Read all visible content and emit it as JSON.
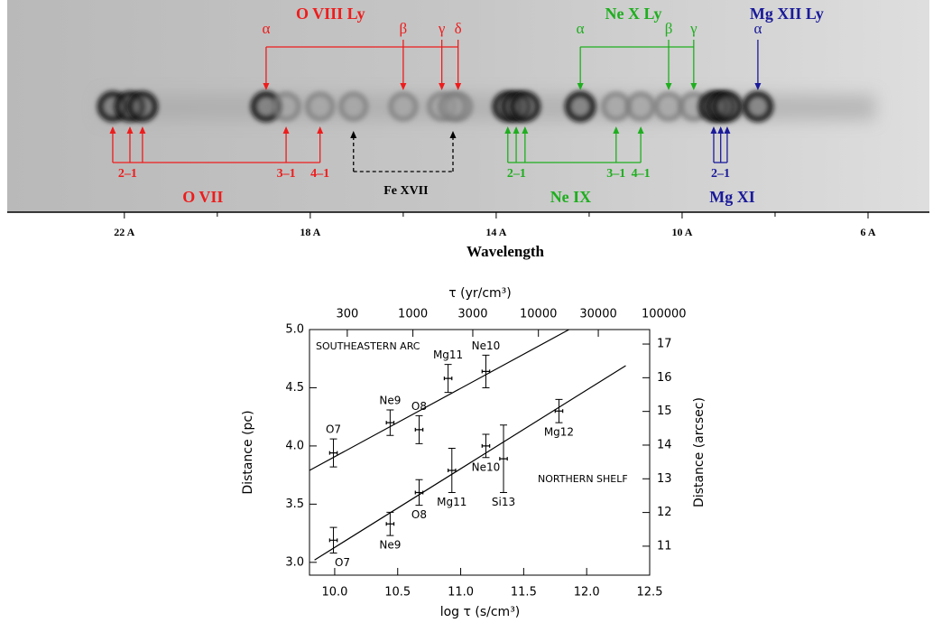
{
  "chart_data": [
    {
      "type": "spectrum-image",
      "xlabel": "Wavelength",
      "xlim": [
        24.52,
        4.68
      ],
      "xticks": [
        {
          "value": 22,
          "label": "22 A"
        },
        {
          "value": 18,
          "label": "18 A"
        },
        {
          "value": 14,
          "label": "14 A"
        },
        {
          "value": 10,
          "label": "10 A"
        },
        {
          "value": 6,
          "label": "6 A"
        }
      ],
      "xminorticks": [
        20,
        16,
        12,
        8
      ],
      "upper_groups": [
        {
          "name": "O VIII Ly",
          "color": "#ee1c1c",
          "transitions": [
            {
              "label": "α",
              "wavelength": 18.95
            },
            {
              "label": "β",
              "wavelength": 16.0
            },
            {
              "label": "γ",
              "wavelength": 15.17
            },
            {
              "label": "δ",
              "wavelength": 14.82
            }
          ]
        },
        {
          "name": "Ne X Ly",
          "color": "#1fae1f",
          "transitions": [
            {
              "label": "α",
              "wavelength": 12.19
            },
            {
              "label": "β",
              "wavelength": 10.29
            },
            {
              "label": "γ",
              "wavelength": 9.75
            }
          ]
        },
        {
          "name": "Mg XII Ly",
          "color": "#1a1a9a",
          "transitions": [
            {
              "label": "α",
              "wavelength": 8.37
            }
          ]
        }
      ],
      "lower_groups": [
        {
          "name": "O VII",
          "color": "#ee1c1c",
          "transitions": [
            {
              "label": "2–1",
              "wavelengths": [
                22.25,
                21.88,
                21.61
              ]
            },
            {
              "label": "3–1",
              "wavelengths": [
                18.52
              ]
            },
            {
              "label": "4–1",
              "wavelengths": [
                17.79
              ]
            }
          ]
        },
        {
          "name": "Fe XVII",
          "color": "#000000",
          "dashed": true,
          "transitions": [
            {
              "wavelengths": [
                17.07,
                14.93
              ]
            }
          ]
        },
        {
          "name": "Ne IX",
          "color": "#1fae1f",
          "transitions": [
            {
              "label": "2–1",
              "wavelengths": [
                13.75,
                13.57,
                13.38
              ]
            },
            {
              "label": "3–1",
              "wavelengths": [
                11.42
              ]
            },
            {
              "label": "4–1",
              "wavelengths": [
                10.89
              ]
            }
          ]
        },
        {
          "name": "Mg XI",
          "color": "#1a1a9a",
          "transitions": [
            {
              "label": "2–1",
              "wavelengths": [
                9.32,
                9.17,
                9.03
              ]
            }
          ]
        }
      ]
    },
    {
      "type": "scatter",
      "xlabel": "log τ (s/cm³)",
      "ylabel": "Distance (pc)",
      "x2label": "τ (yr/cm³)",
      "y2label": "Distance (arcsec)",
      "xlim": [
        9.8,
        12.5
      ],
      "xticks": [
        {
          "value": 10,
          "label": "10.0"
        },
        10.5,
        {
          "value": 11,
          "label": "11.0"
        },
        11.5,
        {
          "value": 12,
          "label": "12.0"
        },
        12.5
      ],
      "ylim": [
        2.89,
        5.0
      ],
      "yticks": [
        {
          "value": 3,
          "label": "3.0"
        },
        3.5,
        {
          "value": 4,
          "label": "4.0"
        },
        4.5,
        {
          "value": 5,
          "label": "5.0"
        }
      ],
      "x2scale": "log",
      "x2lim": [
        150,
        77000
      ],
      "x2ticks": [
        300,
        1000,
        3000,
        10000,
        30000,
        100000
      ],
      "y2lim": [
        10.14,
        17.43
      ],
      "y2ticks": [
        11,
        12,
        13,
        14,
        15,
        16,
        17
      ],
      "series": [
        {
          "name": "SOUTHEASTERN ARC",
          "color": "#000000",
          "labels": [
            "O7",
            "Ne9",
            "O8",
            "Mg11",
            "Ne10"
          ],
          "x": [
            9.99,
            10.44,
            10.67,
            10.9,
            11.2
          ],
          "xerr": [
            0.03,
            0.03,
            0.03,
            0.03,
            0.03
          ],
          "values": [
            3.94,
            4.2,
            4.14,
            4.58,
            4.64
          ],
          "yerr": [
            0.12,
            0.11,
            0.12,
            0.12,
            0.14
          ],
          "fit": {
            "x": [
              9.8,
              11.86
            ],
            "values": [
              3.79,
              5.0
            ]
          }
        },
        {
          "name": "NORTHERN SHELF",
          "color": "#000000",
          "labels": [
            "O7",
            "Ne9",
            "O8",
            "Mg11",
            "Ne10",
            "Si13",
            "Mg12"
          ],
          "x": [
            9.99,
            10.44,
            10.67,
            10.93,
            11.2,
            11.34,
            11.78
          ],
          "xerr": [
            0.03,
            0.03,
            0.03,
            0.03,
            0.03,
            0.03,
            0.03
          ],
          "values": [
            3.19,
            3.33,
            3.6,
            3.79,
            4.0,
            3.89,
            4.3
          ],
          "yerr": [
            0.11,
            0.1,
            0.11,
            0.19,
            0.1,
            0.29,
            0.1
          ],
          "fit": {
            "x": [
              9.84,
              12.31
            ],
            "values": [
              3.02,
              4.69
            ]
          }
        }
      ]
    }
  ]
}
